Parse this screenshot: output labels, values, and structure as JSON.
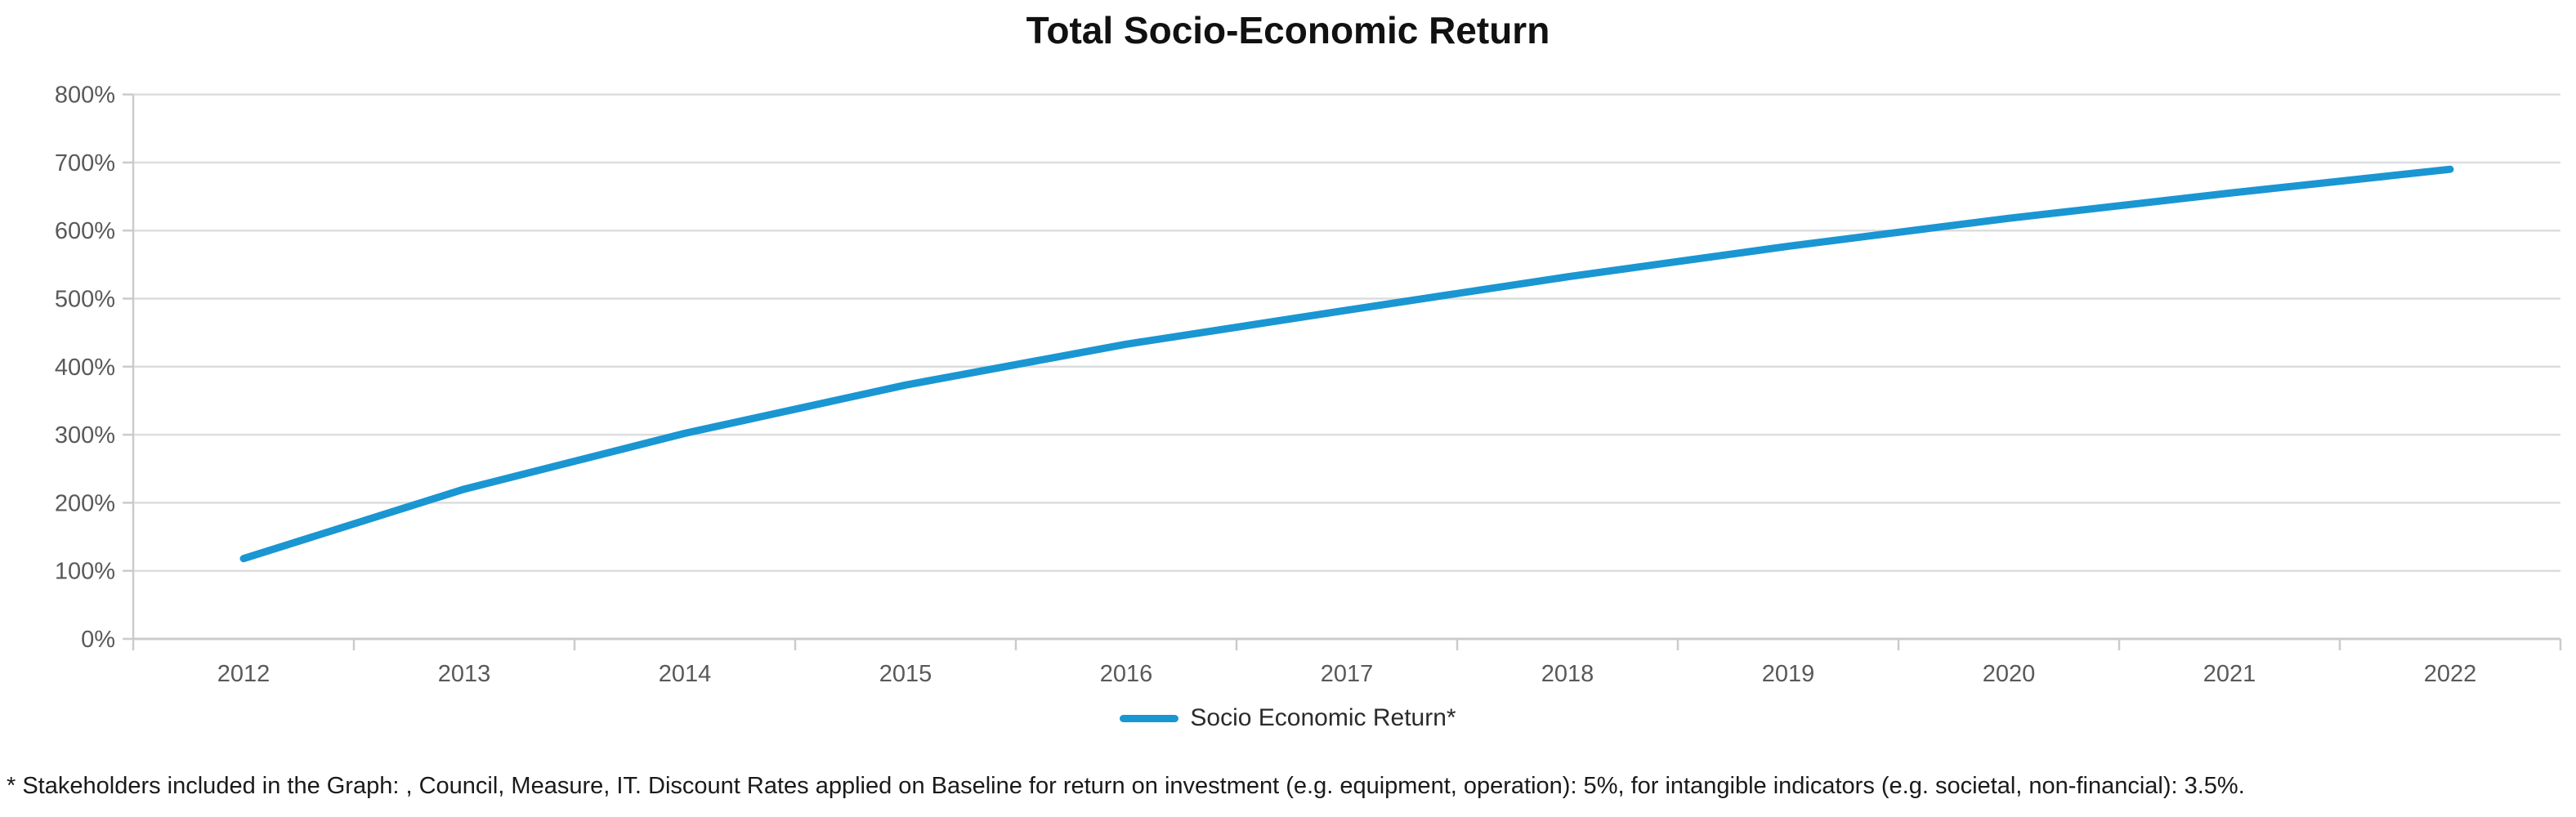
{
  "chart": {
    "title": "Total Socio-Economic Return",
    "legend": {
      "label": "Socio Economic Return*"
    },
    "footnote": "* Stakeholders included in the Graph: , Council, Measure, IT. Discount Rates applied on Baseline for return on investment (e.g. equipment, operation): 5%, for intangible indicators (e.g. societal, non-financial): 3.5%."
  },
  "chart_data": {
    "type": "line",
    "title": "Total Socio-Economic Return",
    "categories": [
      "2012",
      "2013",
      "2014",
      "2015",
      "2016",
      "2017",
      "2018",
      "2019",
      "2020",
      "2021",
      "2022"
    ],
    "series": [
      {
        "name": "Socio Economic Return*",
        "values": [
          118,
          220,
          302,
          373,
          433,
          483,
          532,
          577,
          618,
          655,
          690
        ]
      }
    ],
    "xlabel": "",
    "ylabel": "",
    "ylim": [
      0,
      800
    ],
    "ytick_step": 100,
    "ytick_suffix": "%",
    "grid": "horizontal",
    "legend_position": "bottom",
    "colors": {
      "series_line": "#1A96D2",
      "gridline": "#DCDDDE",
      "axis_line": "#C9CCCE",
      "axis_text": "#595959",
      "title_text": "#111111",
      "legend_text": "#2B2B2B",
      "footnote_text": "#1A1A1A",
      "background": "#FFFFFF"
    }
  }
}
